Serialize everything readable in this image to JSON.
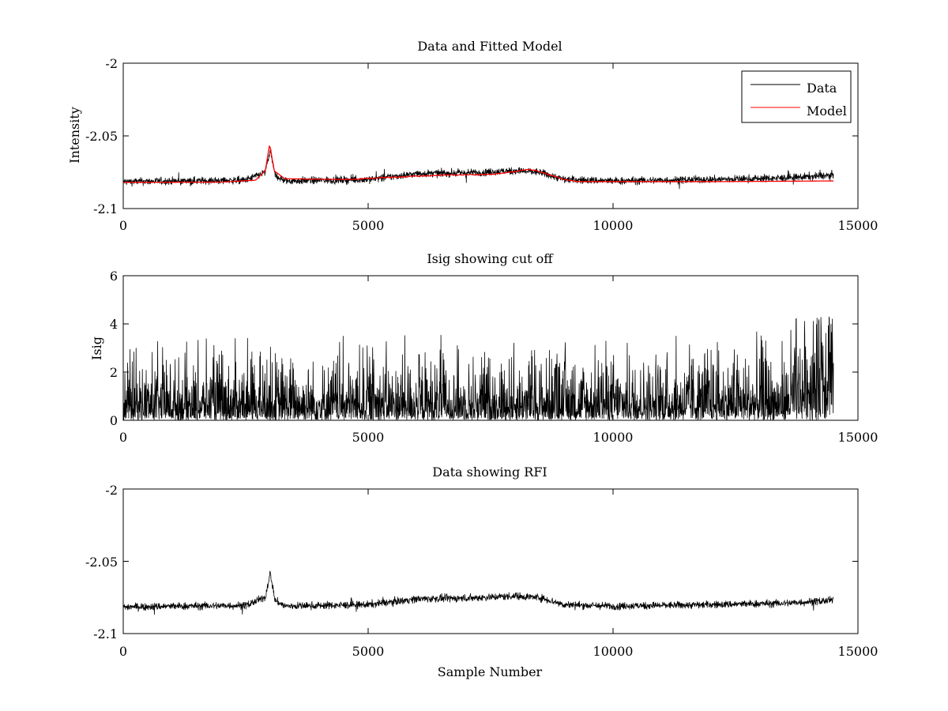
{
  "chart_data": [
    {
      "type": "line",
      "title": "Data and Fitted Model",
      "xlabel": "",
      "ylabel": "Intensity",
      "xlim": [
        0,
        15000
      ],
      "ylim": [
        -2.1,
        -2.0
      ],
      "xticks": [
        "0",
        "5000",
        "10000",
        "15000"
      ],
      "yticks": [
        "-2",
        "-2.05",
        "-2.1"
      ],
      "legend": {
        "position": "top-right",
        "entries": [
          "Data",
          "Model"
        ]
      },
      "series": [
        {
          "name": "Data",
          "color": "#000000",
          "style": "noisy",
          "n_samples": 14500,
          "noise_amplitude": 0.0045,
          "baseline": [
            [
              0,
              -2.0815
            ],
            [
              2500,
              -2.0805
            ],
            [
              2900,
              -2.075
            ],
            [
              3000,
              -2.06
            ],
            [
              3100,
              -2.077
            ],
            [
              3300,
              -2.081
            ],
            [
              5000,
              -2.08
            ],
            [
              6000,
              -2.076
            ],
            [
              7000,
              -2.0755
            ],
            [
              8000,
              -2.074
            ],
            [
              8500,
              -2.075
            ],
            [
              9000,
              -2.08
            ],
            [
              10000,
              -2.081
            ],
            [
              12000,
              -2.08
            ],
            [
              13500,
              -2.079
            ],
            [
              14500,
              -2.077
            ]
          ]
        },
        {
          "name": "Model",
          "color": "#ff0000",
          "style": "smooth",
          "points": [
            [
              0,
              -2.082
            ],
            [
              2000,
              -2.0818
            ],
            [
              2700,
              -2.0805
            ],
            [
              2900,
              -2.074
            ],
            [
              2990,
              -2.0555
            ],
            [
              3080,
              -2.074
            ],
            [
              3300,
              -2.0795
            ],
            [
              4500,
              -2.08
            ],
            [
              5500,
              -2.0785
            ],
            [
              6500,
              -2.077
            ],
            [
              7500,
              -2.0765
            ],
            [
              7800,
              -2.0755
            ],
            [
              8000,
              -2.0745
            ],
            [
              8300,
              -2.073
            ],
            [
              8600,
              -2.0755
            ],
            [
              9000,
              -2.08
            ],
            [
              9300,
              -2.0815
            ],
            [
              12000,
              -2.0815
            ],
            [
              14500,
              -2.081
            ]
          ]
        }
      ]
    },
    {
      "type": "line",
      "title": "Isig showing cut off",
      "xlabel": "",
      "ylabel": "Isig",
      "xlim": [
        0,
        15000
      ],
      "ylim": [
        0,
        6
      ],
      "xticks": [
        "0",
        "5000",
        "10000",
        "15000"
      ],
      "yticks": [
        "6",
        "4",
        "2",
        "0"
      ],
      "series": [
        {
          "color": "#000000",
          "style": "noisy",
          "n_samples": 14500,
          "noise_amplitude": 1.0,
          "baseline": [
            [
              0,
              0.8
            ],
            [
              13500,
              0.9
            ],
            [
              14500,
              1.5
            ]
          ],
          "max_peak": 4.3
        }
      ]
    },
    {
      "type": "line",
      "title": "Data showing RFI",
      "xlabel": "Sample Number",
      "ylabel": "",
      "xlim": [
        0,
        15000
      ],
      "ylim": [
        -2.1,
        -2.0
      ],
      "xticks": [
        "0",
        "5000",
        "10000",
        "15000"
      ],
      "yticks": [
        "-2",
        "-2.05",
        "-2.1"
      ],
      "series": [
        {
          "color": "#000000",
          "style": "noisy",
          "n_samples": 14500,
          "noise_amplitude": 0.0045,
          "baseline": [
            [
              0,
              -2.0815
            ],
            [
              2500,
              -2.0805
            ],
            [
              2900,
              -2.075
            ],
            [
              3000,
              -2.058
            ],
            [
              3100,
              -2.077
            ],
            [
              3300,
              -2.081
            ],
            [
              5000,
              -2.08
            ],
            [
              6000,
              -2.076
            ],
            [
              7000,
              -2.0755
            ],
            [
              8000,
              -2.074
            ],
            [
              8500,
              -2.075
            ],
            [
              9000,
              -2.08
            ],
            [
              10000,
              -2.081
            ],
            [
              12000,
              -2.08
            ],
            [
              13500,
              -2.079
            ],
            [
              14500,
              -2.077
            ]
          ]
        }
      ]
    }
  ]
}
